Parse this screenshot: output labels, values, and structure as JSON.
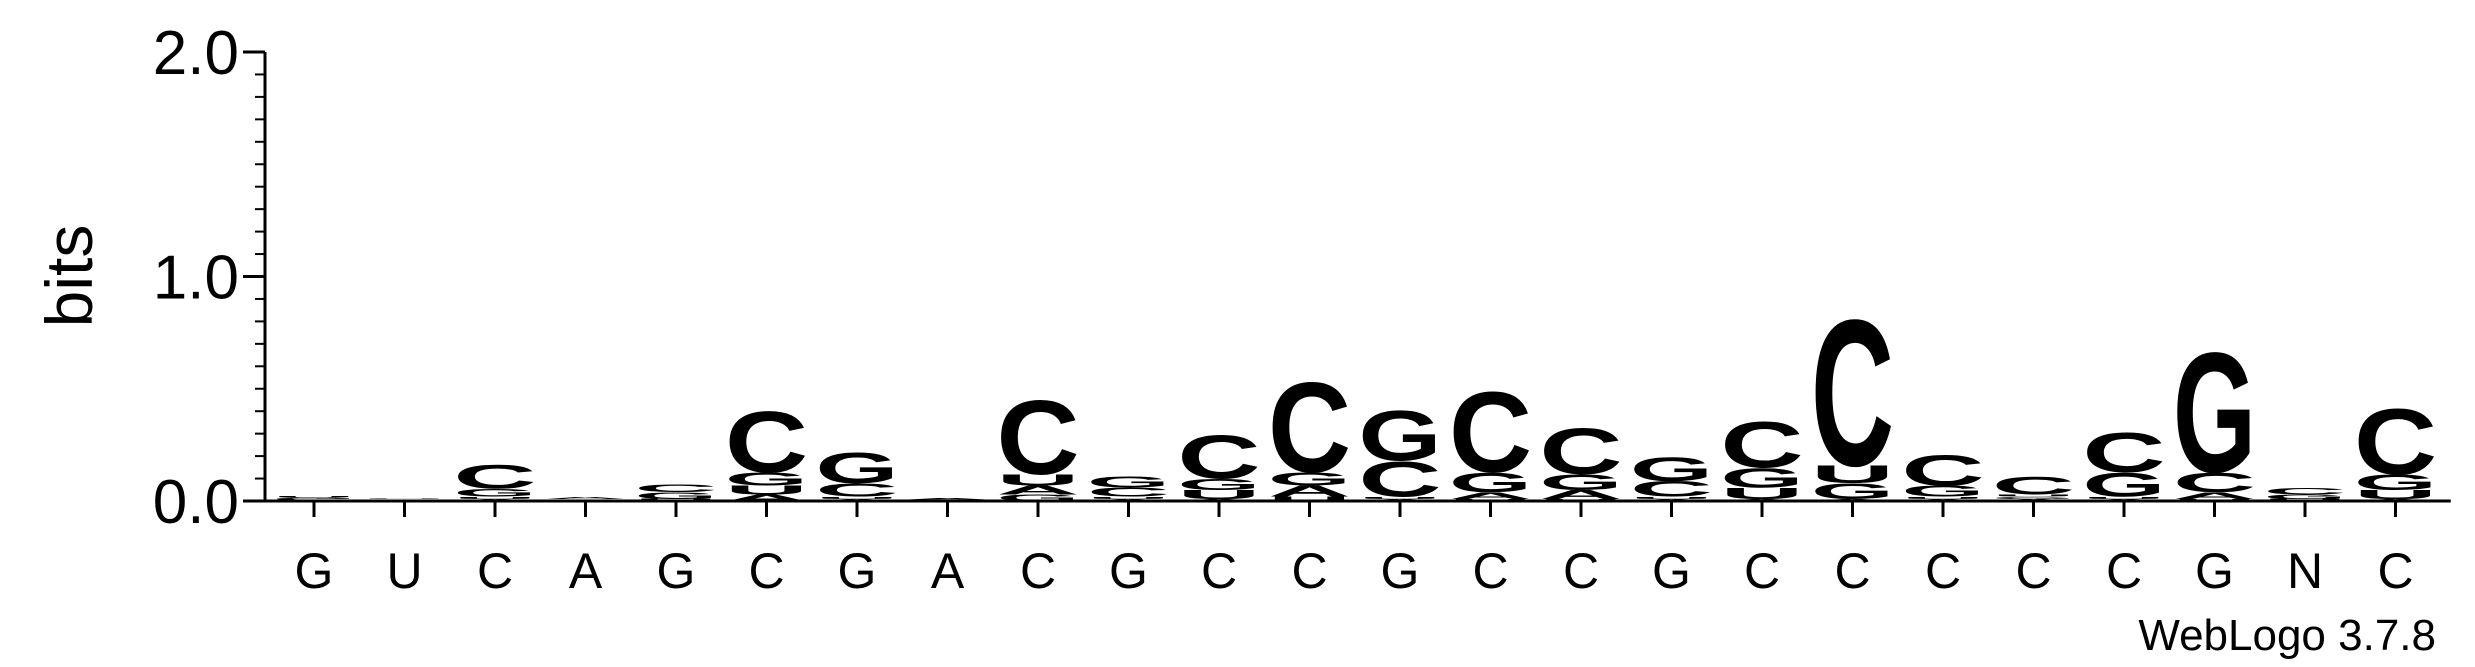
{
  "chart_data": {
    "type": "logo",
    "y_label": "bits",
    "footer": "WebLogo 3.7.8",
    "categories": [
      "G",
      "U",
      "C",
      "A",
      "G",
      "C",
      "G",
      "A",
      "C",
      "G",
      "C",
      "C",
      "G",
      "C",
      "C",
      "G",
      "C",
      "C",
      "C",
      "C",
      "C",
      "G",
      "N",
      "C"
    ],
    "series": [
      {
        "name": "A",
        "color": "#ff8c00",
        "values": [
          0.005,
          0.003,
          0.01,
          0.01,
          0.005,
          0.03,
          0.01,
          0.005,
          0.04,
          0.01,
          0.01,
          0.05,
          0.01,
          0.03,
          0.04,
          0.01,
          0.01,
          0.01,
          0.01,
          0.01,
          0.01,
          0.03,
          0.005,
          0.01
        ]
      },
      {
        "name": "C",
        "color": "#0000ff",
        "values": [
          0.005,
          0.003,
          0.11,
          0.003,
          0.035,
          0.28,
          0.06,
          0.002,
          0.34,
          0.04,
          0.2,
          0.41,
          0.16,
          0.37,
          0.21,
          0.07,
          0.21,
          0.67,
          0.14,
          0.08,
          0.18,
          0.09,
          0.03,
          0.3
        ]
      },
      {
        "name": "G",
        "color": "#0000ff",
        "values": [
          0.005,
          0.002,
          0.035,
          0.002,
          0.03,
          0.06,
          0.14,
          0.002,
          0.03,
          0.05,
          0.05,
          0.06,
          0.23,
          0.09,
          0.07,
          0.11,
          0.09,
          0.07,
          0.05,
          0.01,
          0.11,
          0.55,
          0.02,
          0.07
        ]
      },
      {
        "name": "U",
        "color": "#ff8c00",
        "values": [
          0.005,
          0.004,
          0.01,
          0.003,
          0.005,
          0.04,
          0.01,
          0.002,
          0.05,
          0.01,
          0.04,
          0.02,
          0.01,
          0.01,
          0.01,
          0.01,
          0.05,
          0.08,
          0.01,
          0.01,
          0.01,
          0.01,
          0.005,
          0.04
        ]
      }
    ],
    "ylim": [
      0,
      2
    ],
    "yticks": [
      {
        "value": 0,
        "label": "0.0"
      },
      {
        "value": 1,
        "label": "1.0"
      },
      {
        "value": 2,
        "label": "2.0"
      }
    ]
  }
}
